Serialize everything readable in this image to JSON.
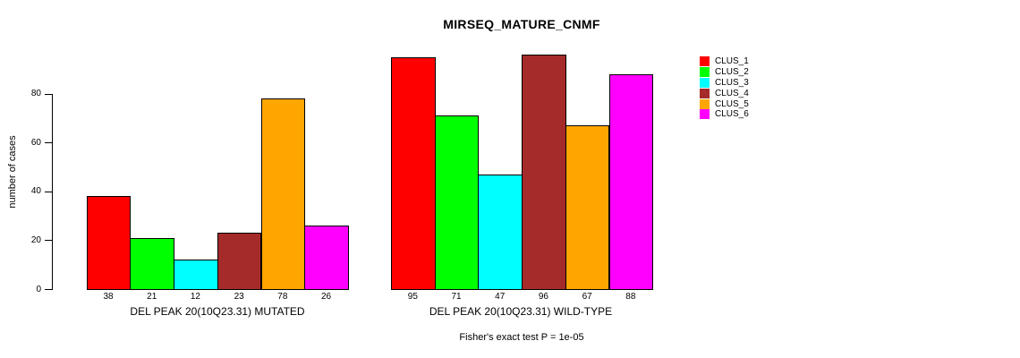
{
  "chart_data": {
    "type": "bar",
    "title": "MIRSEQ_MATURE_CNMF",
    "ylabel": "number of cases",
    "xlabel": "",
    "ylim": [
      0,
      96
    ],
    "yticks": [
      0,
      20,
      40,
      60,
      80
    ],
    "grid": false,
    "categories": [
      "CLUS_1",
      "CLUS_2",
      "CLUS_3",
      "CLUS_4",
      "CLUS_5",
      "CLUS_6"
    ],
    "colors": [
      "#FF0000",
      "#00FF00",
      "#00FFFF",
      "#A52A2A",
      "#FFA500",
      "#FF00FF"
    ],
    "panels": [
      {
        "name": "mutated",
        "xlabel": "DEL PEAK 20(10Q23.31) MUTATED",
        "values": [
          38,
          21,
          12,
          23,
          78,
          26
        ]
      },
      {
        "name": "wild-type",
        "xlabel": "DEL PEAK 20(10Q23.31) WILD-TYPE",
        "values": [
          95,
          71,
          47,
          96,
          67,
          88
        ]
      }
    ],
    "legend": {
      "position": "right",
      "entries": [
        "CLUS_1",
        "CLUS_2",
        "CLUS_3",
        "CLUS_4",
        "CLUS_5",
        "CLUS_6"
      ]
    },
    "annotation": "Fisher's exact test P = 1e-05"
  }
}
